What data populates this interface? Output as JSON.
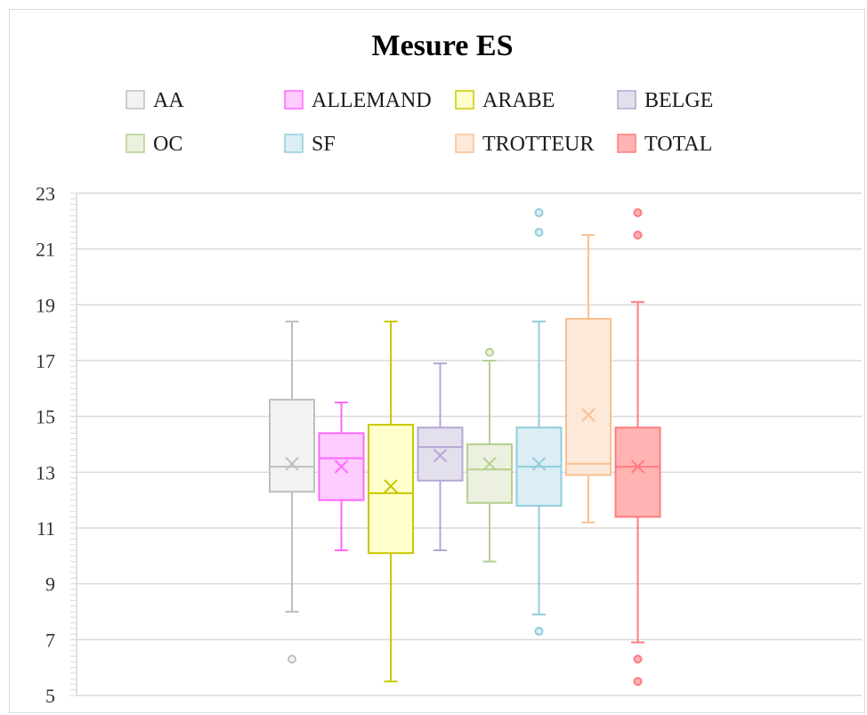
{
  "chart_data": {
    "type": "box",
    "title": "Mesure ES",
    "ylim": [
      5,
      23
    ],
    "yticks": [
      5,
      7,
      9,
      11,
      13,
      15,
      17,
      19,
      21,
      23
    ],
    "grid": true,
    "legend_position": "top",
    "series": [
      {
        "name": "AA",
        "stroke": "#bfbfbf",
        "fill": "#f2f2f2",
        "min": 8.0,
        "q1": 12.3,
        "median": 13.2,
        "q3": 15.6,
        "max": 18.4,
        "mean": 13.3,
        "outliers": [
          6.3
        ]
      },
      {
        "name": "ALLEMAND",
        "stroke": "#ff66ff",
        "fill": "#ffccff",
        "min": 10.2,
        "q1": 12.0,
        "median": 13.5,
        "q3": 14.4,
        "max": 15.5,
        "mean": 13.2,
        "outliers": []
      },
      {
        "name": "ARABE",
        "stroke": "#c8c800",
        "fill": "#ffffcc",
        "min": 5.5,
        "q1": 10.1,
        "median": 12.25,
        "q3": 14.7,
        "max": 18.4,
        "mean": 12.5,
        "outliers": []
      },
      {
        "name": "BELGE",
        "stroke": "#b4a7d6",
        "fill": "#e4dfec",
        "min": 10.2,
        "q1": 12.7,
        "median": 13.9,
        "q3": 14.6,
        "max": 16.9,
        "mean": 13.6,
        "outliers": []
      },
      {
        "name": "OC",
        "stroke": "#b5d08f",
        "fill": "#ebf1de",
        "min": 9.8,
        "q1": 11.9,
        "median": 13.1,
        "q3": 14.0,
        "max": 17.0,
        "mean": 13.3,
        "outliers": [
          17.3
        ]
      },
      {
        "name": "SF",
        "stroke": "#92cddc",
        "fill": "#daeef3",
        "min": 7.9,
        "q1": 11.8,
        "median": 13.2,
        "q3": 14.6,
        "max": 18.4,
        "mean": 13.3,
        "outliers": [
          7.3,
          21.6,
          22.3
        ]
      },
      {
        "name": "TROTTEUR",
        "stroke": "#fac090",
        "fill": "#fde9d9",
        "min": 11.2,
        "q1": 12.9,
        "median": 13.3,
        "q3": 18.5,
        "max": 21.5,
        "mean": 15.05,
        "outliers": []
      },
      {
        "name": "TOTAL",
        "stroke": "#ff7c80",
        "fill": "#ffb3b3",
        "min": 6.9,
        "q1": 11.4,
        "median": 13.2,
        "q3": 14.6,
        "max": 19.1,
        "mean": 13.2,
        "outliers": [
          5.5,
          6.3,
          21.5,
          22.3
        ]
      }
    ]
  }
}
